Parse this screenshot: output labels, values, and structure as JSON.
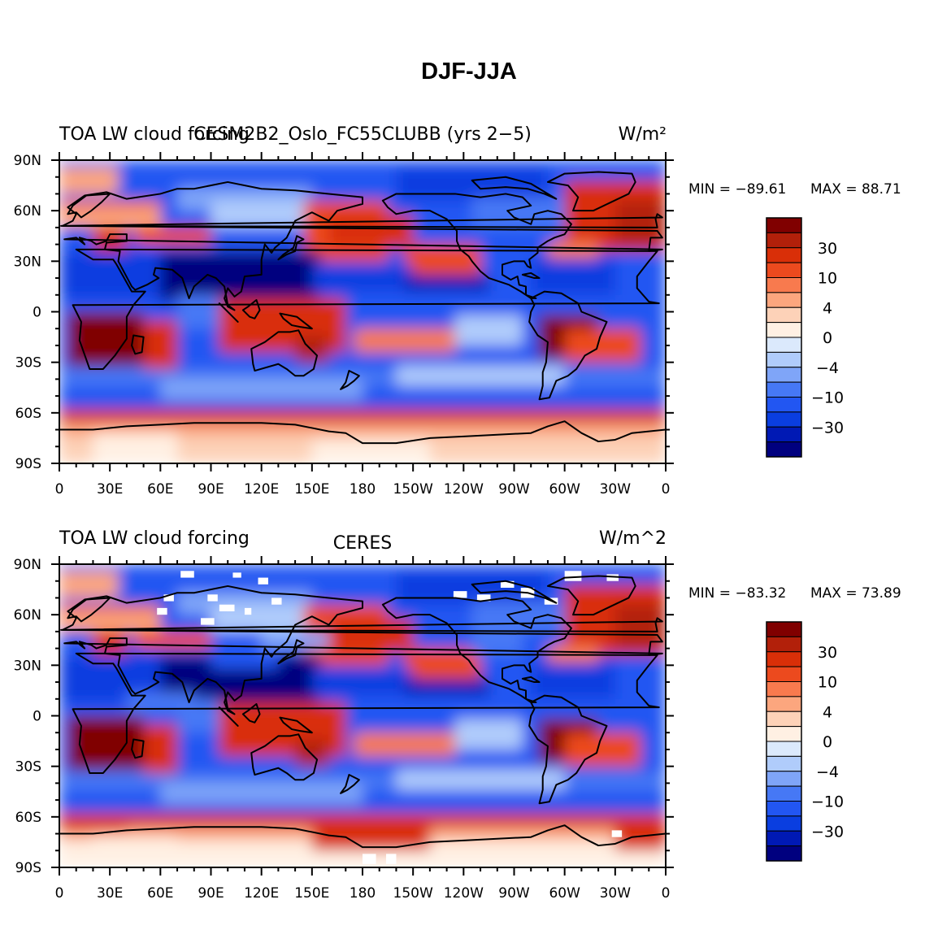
{
  "title": "DJF-JJA",
  "colors": {
    "levels": [
      "#00007f",
      "#0019b4",
      "#0a3ee0",
      "#2256f2",
      "#4678f5",
      "#7fa5f8",
      "#b0ccfb",
      "#dbe9fc",
      "#fff0e3",
      "#fdd2b8",
      "#fca67e",
      "#f87a4e",
      "#ec4a1e",
      "#d92f08",
      "#b2200a",
      "#800000"
    ],
    "coast": "#000000",
    "missing": "#ffffff"
  },
  "axes": {
    "lat_labels": [
      "90N",
      "60N",
      "30N",
      "0",
      "30S",
      "60S",
      "90S"
    ],
    "lon_labels": [
      "0",
      "30E",
      "60E",
      "90E",
      "120E",
      "150E",
      "180",
      "150W",
      "120W",
      "90W",
      "60W",
      "30W",
      "0"
    ]
  },
  "colorbar": {
    "labels": [
      "30",
      "10",
      "4",
      "0",
      "−4",
      "−10",
      "−30"
    ]
  },
  "panels": [
    {
      "left_title": "TOA LW cloud forcing",
      "center_title": "CESM2B2_Oslo_FC55CLUBB (yrs 2−5)",
      "units": "W/m²",
      "min_text": "MIN = −89.61",
      "max_text": "MAX =  88.71"
    },
    {
      "left_title": "TOA LW cloud forcing",
      "center_title": "CERES",
      "units": "W/m^2",
      "min_text": "MIN = −83.32",
      "max_text": "MAX =  73.89"
    }
  ]
}
